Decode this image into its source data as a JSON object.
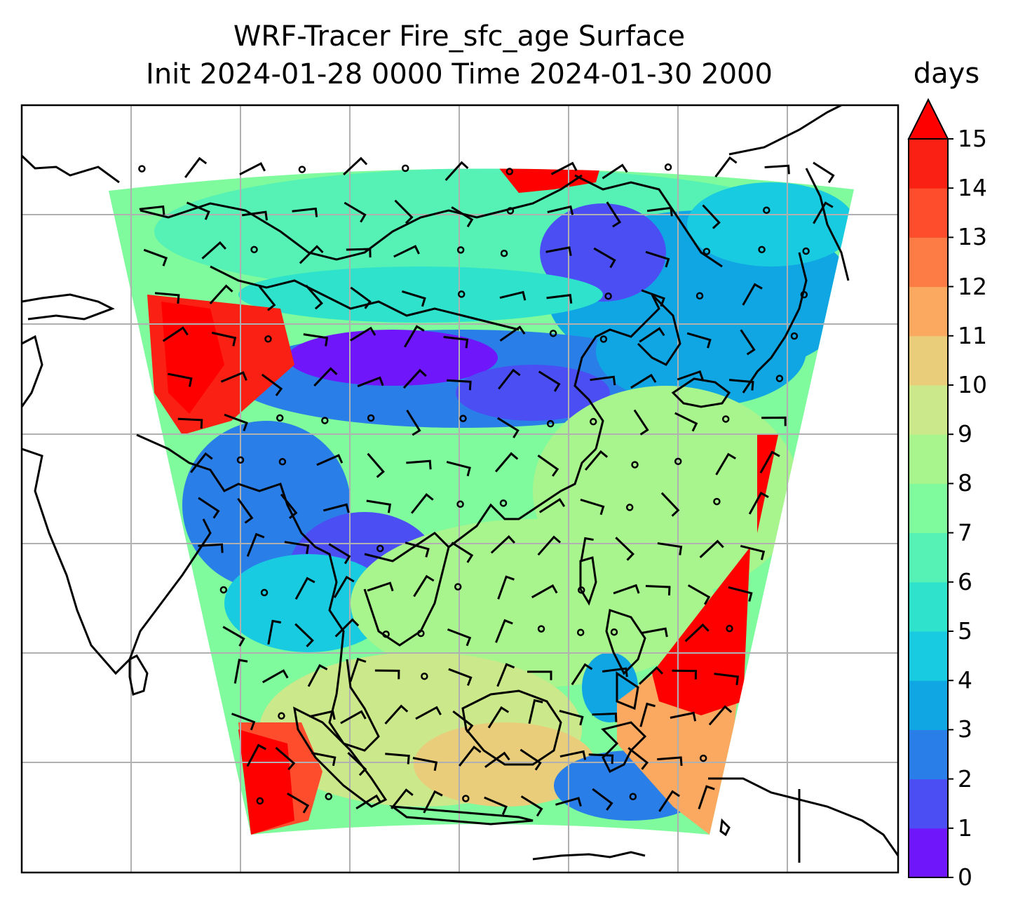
{
  "title": {
    "line1": "WRF-Tracer Fire_sfc_age Surface",
    "line2": "Init 2024-01-28 0000 Time 2024-01-30 2000"
  },
  "colorbar": {
    "units": "days",
    "ticks": [
      "0",
      "1",
      "2",
      "3",
      "4",
      "5",
      "6",
      "7",
      "8",
      "9",
      "10",
      "11",
      "12",
      "13",
      "14",
      "15"
    ],
    "colors": [
      "#6f16fa",
      "#4b4ff3",
      "#2a7ee8",
      "#10a6e4",
      "#19cbe0",
      "#2fe2cc",
      "#56f2b5",
      "#7ffa9c",
      "#a8f48d",
      "#cbe88a",
      "#e9cd7a",
      "#fba860",
      "#fd7b45",
      "#fd4d2c",
      "#fa2014"
    ],
    "extend": "max",
    "extend_color": "#ff0000"
  },
  "map": {
    "gridlines": true,
    "field": "Fire_sfc_age",
    "overlay": "surface wind barbs",
    "colors": {
      "ocean_bg": "#ffffff",
      "coast": "#000000",
      "grid": "#b0b0b0"
    }
  }
}
